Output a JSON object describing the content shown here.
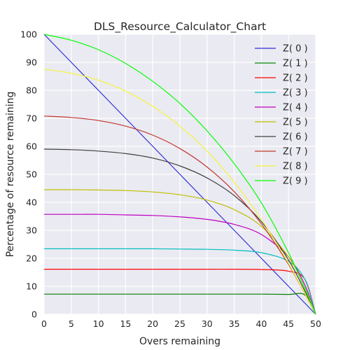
{
  "chart_data": {
    "type": "line",
    "title": "DLS_Resource_Calculator_Chart",
    "xlabel": "Overs remaining",
    "ylabel": "Percentage of resource remaining",
    "xlim": [
      0,
      50
    ],
    "ylim": [
      0,
      100
    ],
    "x_ticks": [
      "0",
      "5",
      "10",
      "15",
      "20",
      "25",
      "30",
      "35",
      "40",
      "45",
      "50"
    ],
    "y_ticks": [
      "0",
      "10",
      "20",
      "30",
      "40",
      "50",
      "60",
      "70",
      "80",
      "90",
      "100"
    ],
    "grid": true,
    "legend_position": "top-right",
    "x": [
      0,
      5,
      10,
      15,
      20,
      25,
      30,
      35,
      40,
      45,
      48,
      50
    ],
    "series": [
      {
        "name": "Z( 0 )",
        "color": "#2f2fd6",
        "values": [
          100,
          90,
          80,
          70,
          60,
          50,
          40,
          30,
          20,
          10,
          4,
          0
        ]
      },
      {
        "name": "Z( 1 )",
        "color": "#008000",
        "values": [
          7.2,
          7.2,
          7.2,
          7.2,
          7.2,
          7.2,
          7.2,
          7.2,
          7.2,
          7.1,
          6.9,
          0
        ]
      },
      {
        "name": "Z( 2 )",
        "color": "#ff0000",
        "values": [
          16.1,
          16.1,
          16.1,
          16.1,
          16.1,
          16.1,
          16.1,
          16.1,
          16.0,
          15.4,
          12.5,
          0
        ]
      },
      {
        "name": "Z( 3 )",
        "color": "#00bfbf",
        "values": [
          23.4,
          23.4,
          23.4,
          23.4,
          23.4,
          23.3,
          23.2,
          22.9,
          22.0,
          18.9,
          12.5,
          0
        ]
      },
      {
        "name": "Z( 4 )",
        "color": "#bf00bf",
        "values": [
          35.7,
          35.7,
          35.7,
          35.5,
          35.3,
          34.8,
          33.9,
          32.1,
          28.5,
          20.5,
          10.5,
          0
        ]
      },
      {
        "name": "Z( 5 )",
        "color": "#bfbf00",
        "values": [
          44.5,
          44.5,
          44.4,
          44.2,
          43.7,
          42.7,
          40.8,
          37.4,
          31.4,
          20.5,
          9.5,
          0
        ]
      },
      {
        "name": "Z( 6 )",
        "color": "#404040",
        "values": [
          59.0,
          58.8,
          58.3,
          57.4,
          55.8,
          53.0,
          48.7,
          42.4,
          33.1,
          19.4,
          8.3,
          0
        ]
      },
      {
        "name": "Z( 7 )",
        "color": "#c0392b",
        "values": [
          70.8,
          70.3,
          69.2,
          67.2,
          64.0,
          59.2,
          52.6,
          43.8,
          32.3,
          17.8,
          7.3,
          0
        ]
      },
      {
        "name": "Z( 8 )",
        "color": "#f5f53d",
        "values": [
          87.5,
          86.1,
          83.6,
          79.7,
          74.3,
          67.2,
          58.3,
          47.2,
          33.9,
          18.2,
          7.4,
          0
        ]
      },
      {
        "name": "Z( 9 )",
        "color": "#00ff00",
        "values": [
          100,
          97.9,
          94.5,
          89.6,
          83.2,
          75.3,
          65.5,
          53.8,
          39.8,
          22.0,
          9.2,
          0
        ]
      }
    ]
  }
}
